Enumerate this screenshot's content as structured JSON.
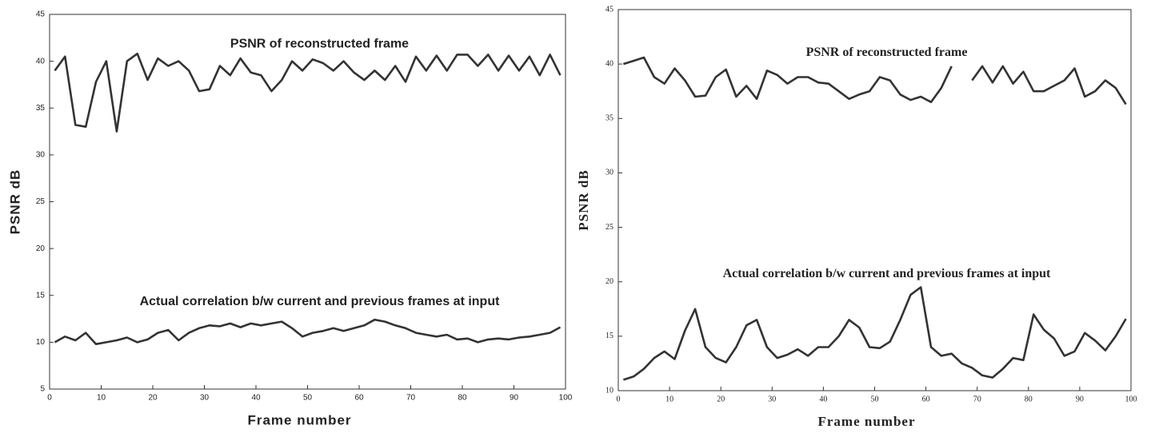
{
  "chart_data": [
    {
      "type": "line",
      "xlabel": "Frame number",
      "ylabel": "PSNR dB",
      "x": [
        1,
        3,
        5,
        7,
        9,
        11,
        13,
        15,
        17,
        19,
        21,
        23,
        25,
        27,
        29,
        31,
        33,
        35,
        37,
        39,
        41,
        43,
        45,
        47,
        49,
        51,
        53,
        55,
        57,
        59,
        61,
        63,
        65,
        67,
        69,
        71,
        73,
        75,
        77,
        79,
        81,
        83,
        85,
        87,
        89,
        91,
        93,
        95,
        97,
        99
      ],
      "series": [
        {
          "name": "PSNR of reconstructed frame",
          "color": "#333333",
          "values": [
            39,
            40.5,
            33.2,
            33,
            37.8,
            40,
            32.5,
            40,
            40.8,
            38,
            40.3,
            39.5,
            40,
            39,
            36.8,
            37,
            39.5,
            38.5,
            40.3,
            38.8,
            38.5,
            36.8,
            38,
            40,
            39,
            40.2,
            39.8,
            39,
            40,
            38.8,
            38,
            39,
            38,
            39.5,
            37.8,
            40.5,
            39,
            40.6,
            39,
            40.7,
            40.7,
            39.5,
            40.7,
            39,
            40.6,
            39,
            40.5,
            38.5,
            40.7,
            38.5
          ]
        },
        {
          "name": "Actual correlation b/w current and previous frames at input",
          "color": "#333333",
          "values": [
            10,
            10.6,
            10.2,
            11,
            9.8,
            10,
            10.2,
            10.5,
            10,
            10.3,
            11,
            11.3,
            10.2,
            11,
            11.5,
            11.8,
            11.7,
            12,
            11.6,
            12,
            11.8,
            12,
            12.2,
            11.5,
            10.6,
            11,
            11.2,
            11.5,
            11.2,
            11.5,
            11.8,
            12.4,
            12.2,
            11.8,
            11.5,
            11,
            10.8,
            10.6,
            10.8,
            10.3,
            10.4,
            10,
            10.3,
            10.4,
            10.3,
            10.5,
            10.6,
            10.8,
            11,
            11.6
          ]
        }
      ],
      "xlim": [
        0,
        100
      ],
      "xticks": [
        0,
        10,
        20,
        30,
        40,
        50,
        60,
        70,
        80,
        90,
        100
      ],
      "ylim": [
        5,
        45
      ],
      "yticks": [
        5,
        10,
        15,
        20,
        25,
        30,
        35,
        40,
        45
      ]
    },
    {
      "type": "line",
      "xlabel": "Frame number",
      "ylabel": "PSNR dB",
      "x": [
        1,
        3,
        5,
        7,
        9,
        11,
        13,
        15,
        17,
        19,
        21,
        23,
        25,
        27,
        29,
        31,
        33,
        35,
        37,
        39,
        41,
        43,
        45,
        47,
        49,
        51,
        53,
        55,
        57,
        59,
        61,
        63,
        65,
        67,
        69,
        71,
        73,
        75,
        77,
        79,
        81,
        83,
        85,
        87,
        89,
        91,
        93,
        95,
        97,
        99
      ],
      "series": [
        {
          "name": "PSNR of reconstructed frame",
          "color": "#333333",
          "values": [
            40,
            40.3,
            40.6,
            38.8,
            38.2,
            39.6,
            38.5,
            37,
            37.1,
            38.8,
            39.5,
            37,
            38,
            36.8,
            39.4,
            39,
            38.2,
            38.8,
            38.8,
            38.3,
            38.2,
            37.5,
            36.8,
            37.2,
            37.5,
            38.8,
            38.5,
            37.2,
            36.7,
            37,
            36.5,
            37.8,
            39.8,
            null,
            38.5,
            39.8,
            38.3,
            39.8,
            38.2,
            39.3,
            37.5,
            37.5,
            38,
            38.5,
            39.6,
            37,
            37.5,
            38.5,
            37.8,
            36.3
          ]
        },
        {
          "name": "Actual correlation b/w current and previous frames at input",
          "color": "#333333",
          "values": [
            11,
            11.3,
            12,
            13,
            13.6,
            12.9,
            15.5,
            17.5,
            14,
            13,
            12.6,
            14,
            16,
            16.5,
            14,
            13,
            13.3,
            13.8,
            13.2,
            14,
            14,
            15,
            16.5,
            15.8,
            14,
            13.9,
            14.5,
            16.5,
            18.8,
            19.5,
            14,
            13.2,
            13.4,
            12.5,
            12.1,
            11.4,
            11.2,
            12,
            13,
            12.8,
            17,
            15.6,
            14.8,
            13.2,
            13.6,
            15.3,
            14.6,
            13.7,
            15,
            16.6
          ]
        }
      ],
      "xlim": [
        0,
        100
      ],
      "xticks": [
        0,
        10,
        20,
        30,
        40,
        50,
        60,
        70,
        80,
        90,
        100
      ],
      "ylim": [
        10,
        45
      ],
      "yticks": [
        10,
        15,
        20,
        25,
        30,
        35,
        40,
        45
      ]
    }
  ]
}
